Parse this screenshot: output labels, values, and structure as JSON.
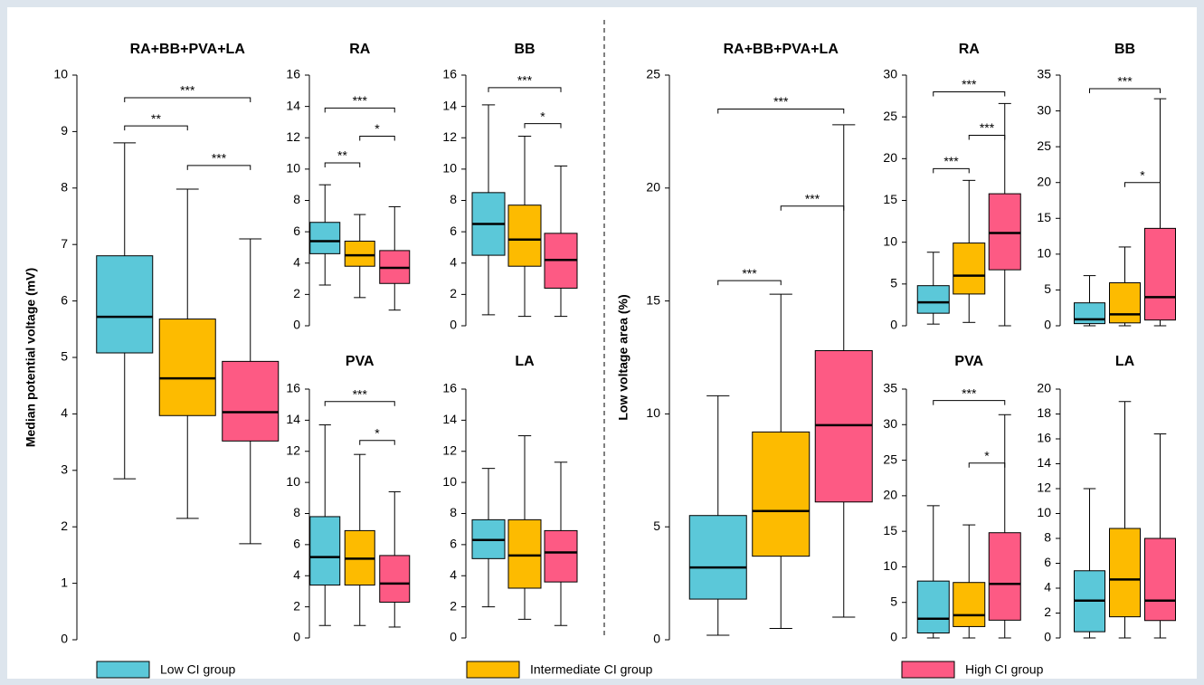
{
  "legend": [
    {
      "name": "Low CI group",
      "color": "#5bc8d9"
    },
    {
      "name": "Intermediate CI group",
      "color": "#fdbb00"
    },
    {
      "name": "High CI group",
      "color": "#fd5a84"
    }
  ],
  "chart_data": [
    {
      "type": "box",
      "title": "RA+BB+PVA+LA",
      "ylabel": "Median potential voltage (mV)",
      "ylim": [
        0,
        10
      ],
      "yticks": [
        0,
        1,
        2,
        3,
        4,
        5,
        6,
        7,
        8,
        9,
        10
      ],
      "boxes": [
        [
          2.85,
          5.08,
          5.72,
          6.8,
          8.8
        ],
        [
          2.15,
          3.97,
          4.63,
          5.68,
          7.98
        ],
        [
          1.7,
          3.52,
          4.03,
          4.93,
          7.1
        ]
      ],
      "annotations": [
        {
          "label": "**",
          "from": 0,
          "to": 1,
          "y": 9.1
        },
        {
          "label": "***",
          "from": 0,
          "to": 2,
          "y": 9.6
        },
        {
          "label": "***",
          "from": 1,
          "to": 2,
          "y": 8.4
        }
      ]
    },
    {
      "type": "box",
      "title": "RA",
      "ylim": [
        0,
        16
      ],
      "yticks": [
        0,
        2,
        4,
        6,
        8,
        10,
        12,
        14,
        16
      ],
      "boxes": [
        [
          2.6,
          4.6,
          5.4,
          6.6,
          9.0
        ],
        [
          1.8,
          3.8,
          4.5,
          5.4,
          7.1
        ],
        [
          1.0,
          2.7,
          3.7,
          4.8,
          7.6
        ]
      ],
      "annotations": [
        {
          "label": "**",
          "from": 0,
          "to": 1,
          "y": 10.4
        },
        {
          "label": "***",
          "from": 0,
          "to": 2,
          "y": 13.9
        },
        {
          "label": "*",
          "from": 1,
          "to": 2,
          "y": 12.1
        }
      ]
    },
    {
      "type": "box",
      "title": "BB",
      "ylim": [
        0,
        16
      ],
      "yticks": [
        0,
        2,
        4,
        6,
        8,
        10,
        12,
        14,
        16
      ],
      "boxes": [
        [
          0.7,
          4.5,
          6.5,
          8.5,
          14.1
        ],
        [
          0.6,
          3.8,
          5.5,
          7.7,
          12.1
        ],
        [
          0.6,
          2.4,
          4.2,
          5.9,
          10.2
        ]
      ],
      "annotations": [
        {
          "label": "***",
          "from": 0,
          "to": 2,
          "y": 15.2
        },
        {
          "label": "*",
          "from": 1,
          "to": 2,
          "y": 12.9
        }
      ]
    },
    {
      "type": "box",
      "title": "PVA",
      "ylim": [
        0,
        16
      ],
      "yticks": [
        0,
        2,
        4,
        6,
        8,
        10,
        12,
        14,
        16
      ],
      "boxes": [
        [
          0.8,
          3.4,
          5.2,
          7.8,
          13.7
        ],
        [
          0.8,
          3.4,
          5.1,
          6.9,
          11.8
        ],
        [
          0.7,
          2.3,
          3.5,
          5.3,
          9.4
        ]
      ],
      "annotations": [
        {
          "label": "***",
          "from": 0,
          "to": 2,
          "y": 15.2
        },
        {
          "label": "*",
          "from": 1,
          "to": 2,
          "y": 12.7
        }
      ]
    },
    {
      "type": "box",
      "title": "LA",
      "ylim": [
        0,
        16
      ],
      "yticks": [
        0,
        2,
        4,
        6,
        8,
        10,
        12,
        14,
        16
      ],
      "boxes": [
        [
          2.0,
          5.1,
          6.3,
          7.6,
          10.9
        ],
        [
          1.2,
          3.2,
          5.3,
          7.6,
          13.0
        ],
        [
          0.8,
          3.6,
          5.5,
          6.9,
          11.3
        ]
      ],
      "annotations": []
    },
    {
      "type": "box",
      "title": "RA+BB+PVA+LA",
      "ylabel": "Low voltage area (%)",
      "ylim": [
        0,
        25
      ],
      "yticks": [
        0,
        5,
        10,
        15,
        20,
        25
      ],
      "boxes": [
        [
          0.2,
          1.8,
          3.2,
          5.5,
          10.8
        ],
        [
          0.5,
          3.7,
          5.7,
          9.2,
          15.3
        ],
        [
          1.0,
          6.1,
          9.5,
          12.8,
          22.8
        ]
      ],
      "annotations": [
        {
          "label": "***",
          "from": 0,
          "to": 1,
          "y": 15.9
        },
        {
          "label": "***",
          "from": 0,
          "to": 2,
          "y": 23.5
        },
        {
          "label": "***",
          "from": 1,
          "to": 2,
          "y": 19.2
        }
      ]
    },
    {
      "type": "box",
      "title": "RA",
      "ylim": [
        0,
        30
      ],
      "yticks": [
        0,
        5,
        10,
        15,
        20,
        25,
        30
      ],
      "boxes": [
        [
          0.2,
          1.5,
          2.8,
          4.8,
          8.8
        ],
        [
          0.4,
          3.8,
          6.0,
          9.9,
          17.4
        ],
        [
          0,
          6.7,
          11.1,
          15.8,
          26.6
        ]
      ],
      "annotations": [
        {
          "label": "***",
          "from": 0,
          "to": 1,
          "y": 18.8
        },
        {
          "label": "***",
          "from": 0,
          "to": 2,
          "y": 28.0
        },
        {
          "label": "***",
          "from": 1,
          "to": 2,
          "y": 22.8
        }
      ]
    },
    {
      "type": "box",
      "title": "BB",
      "ylim": [
        0,
        35
      ],
      "yticks": [
        0,
        5,
        10,
        15,
        20,
        25,
        30,
        35
      ],
      "boxes": [
        [
          0,
          0.3,
          0.9,
          3.2,
          7.0
        ],
        [
          0,
          0.4,
          1.6,
          6.0,
          11.0
        ],
        [
          0,
          0.8,
          4.0,
          13.6,
          31.7
        ]
      ],
      "annotations": [
        {
          "label": "***",
          "from": 0,
          "to": 2,
          "y": 33.1
        },
        {
          "label": "*",
          "from": 1,
          "to": 2,
          "y": 20.0
        }
      ]
    },
    {
      "type": "box",
      "title": "PVA",
      "ylim": [
        0,
        35
      ],
      "yticks": [
        0,
        5,
        10,
        15,
        20,
        25,
        30,
        35
      ],
      "boxes": [
        [
          0,
          0.7,
          2.7,
          8.0,
          18.6
        ],
        [
          0,
          1.6,
          3.2,
          7.8,
          15.9
        ],
        [
          0,
          2.5,
          7.6,
          14.8,
          31.4
        ]
      ],
      "annotations": [
        {
          "label": "***",
          "from": 0,
          "to": 2,
          "y": 33.4
        },
        {
          "label": "*",
          "from": 1,
          "to": 2,
          "y": 24.6
        }
      ]
    },
    {
      "type": "box",
      "title": "LA",
      "ylim": [
        0,
        20
      ],
      "yticks": [
        0,
        2,
        4,
        6,
        8,
        10,
        12,
        14,
        16,
        18,
        20
      ],
      "boxes": [
        [
          0,
          0.5,
          3.0,
          5.4,
          12.0
        ],
        [
          0,
          1.7,
          4.7,
          8.8,
          19.0
        ],
        [
          0,
          1.4,
          3.0,
          8.0,
          16.4
        ]
      ],
      "annotations": []
    }
  ]
}
